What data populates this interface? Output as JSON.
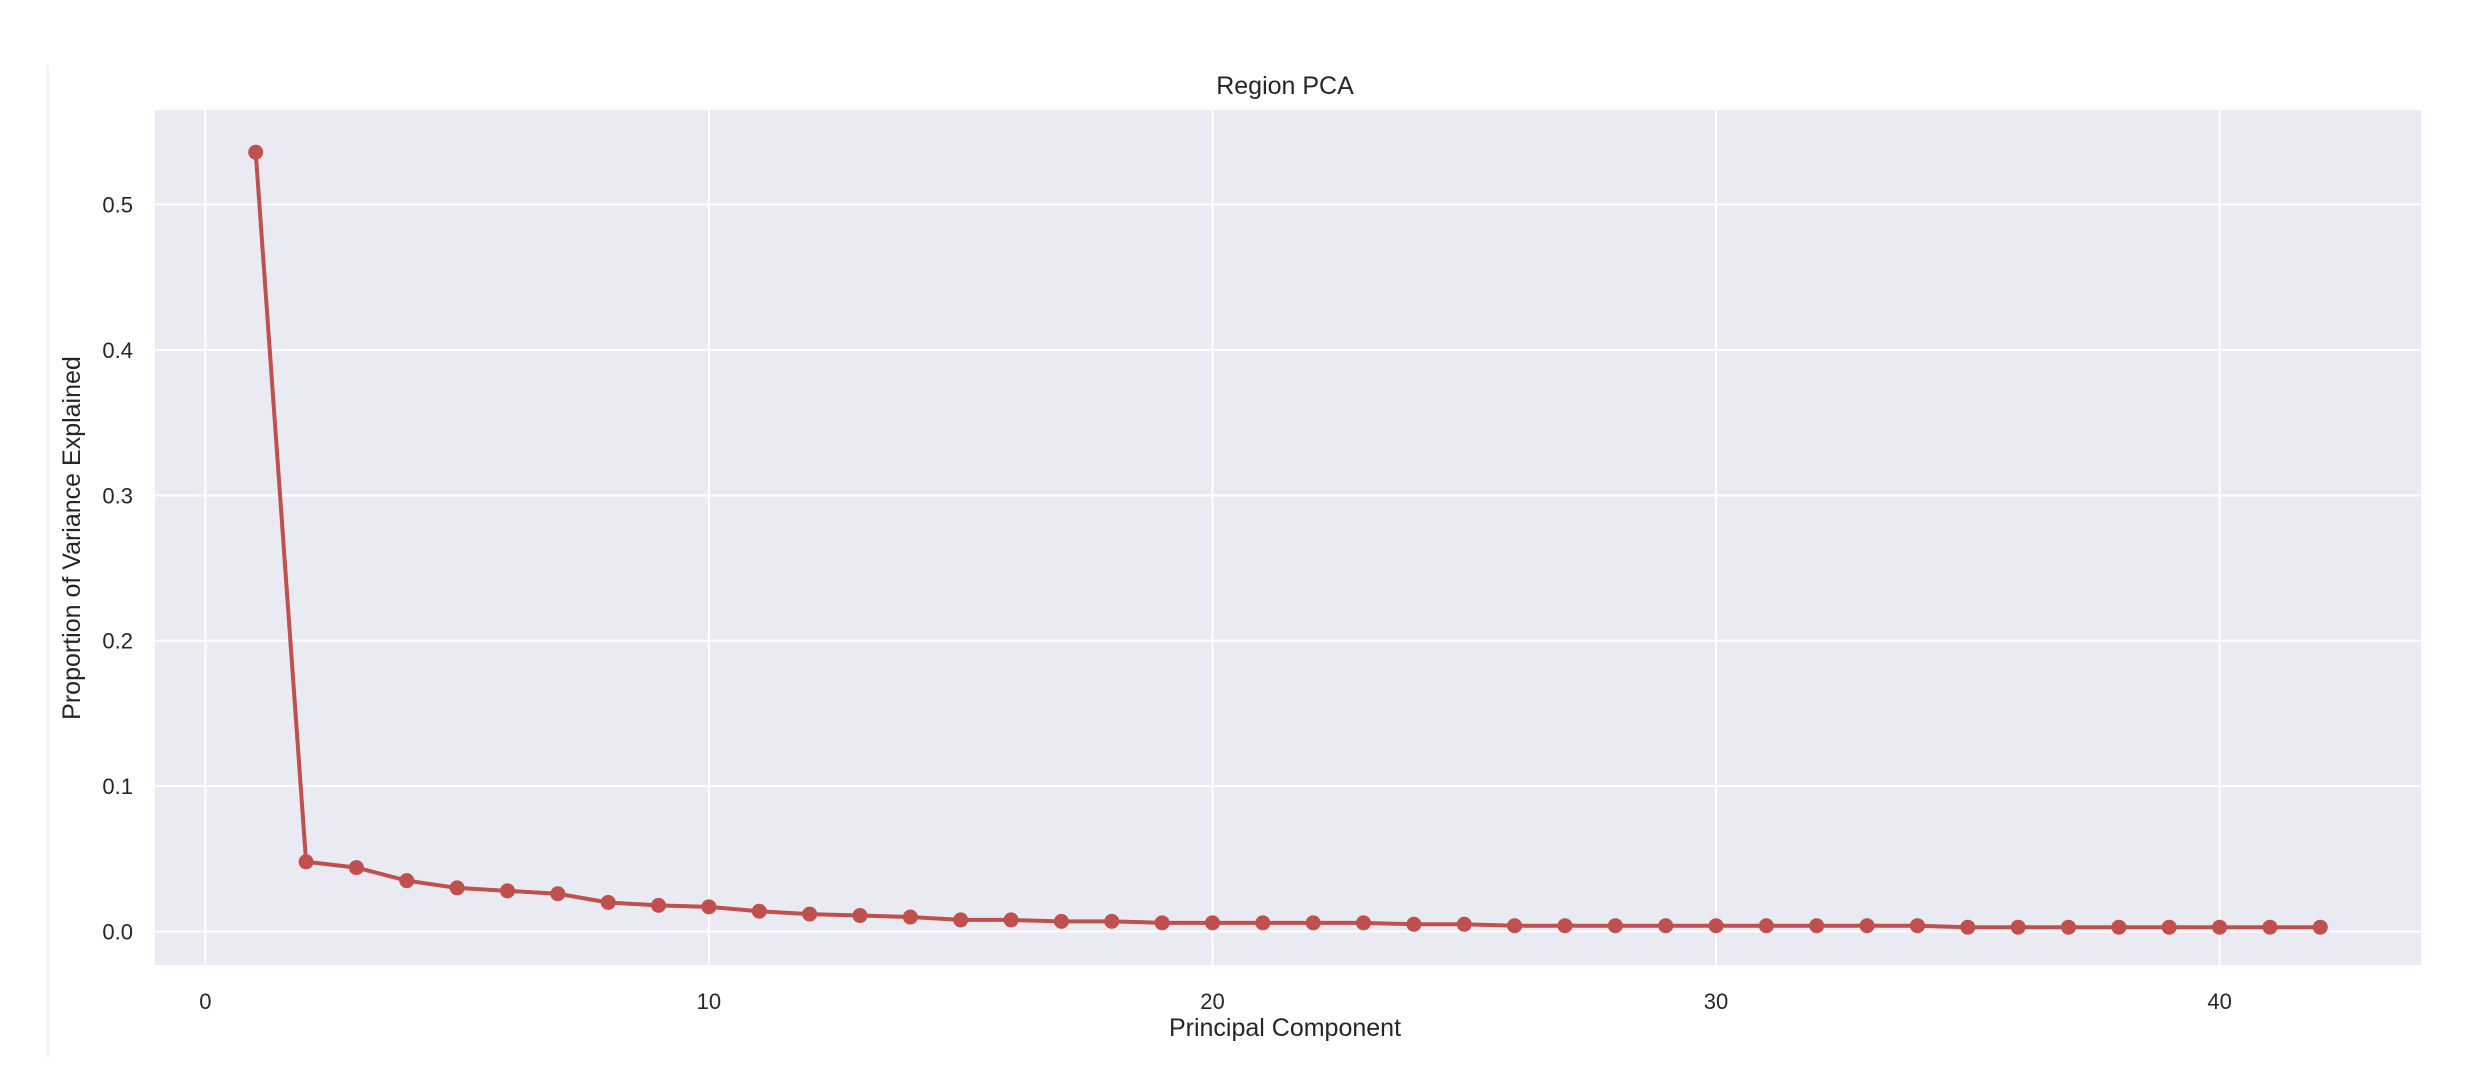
{
  "chart_data": {
    "type": "line",
    "title": "Region PCA",
    "xlabel": "Principal Component",
    "ylabel": "Proportion of Variance Explained",
    "xlim": [
      -1,
      44
    ],
    "ylim": [
      -0.023,
      0.565
    ],
    "x_ticks": [
      0,
      10,
      20,
      30,
      40
    ],
    "y_ticks": [
      0.0,
      0.1,
      0.2,
      0.3,
      0.4,
      0.5
    ],
    "x_tick_labels": [
      "0",
      "10",
      "20",
      "30",
      "40"
    ],
    "y_tick_labels": [
      "0.0",
      "0.1",
      "0.2",
      "0.3",
      "0.4",
      "0.5"
    ],
    "grid": true,
    "background_color": "#eaeaf2",
    "grid_color": "#ffffff",
    "series": [
      {
        "color": "#c0504d",
        "marker": "circle",
        "x": [
          1,
          2,
          3,
          4,
          5,
          6,
          7,
          8,
          9,
          10,
          11,
          12,
          13,
          14,
          15,
          16,
          17,
          18,
          19,
          20,
          21,
          22,
          23,
          24,
          25,
          26,
          27,
          28,
          29,
          30,
          31,
          32,
          33,
          34,
          35,
          36,
          37,
          38,
          39,
          40,
          41,
          42
        ],
        "y": [
          0.536,
          0.048,
          0.044,
          0.035,
          0.03,
          0.028,
          0.026,
          0.02,
          0.018,
          0.017,
          0.014,
          0.012,
          0.011,
          0.01,
          0.008,
          0.008,
          0.007,
          0.007,
          0.006,
          0.006,
          0.006,
          0.006,
          0.006,
          0.005,
          0.005,
          0.004,
          0.004,
          0.004,
          0.004,
          0.004,
          0.004,
          0.004,
          0.004,
          0.004,
          0.003,
          0.003,
          0.003,
          0.003,
          0.003,
          0.003,
          0.003,
          0.003
        ]
      }
    ]
  }
}
